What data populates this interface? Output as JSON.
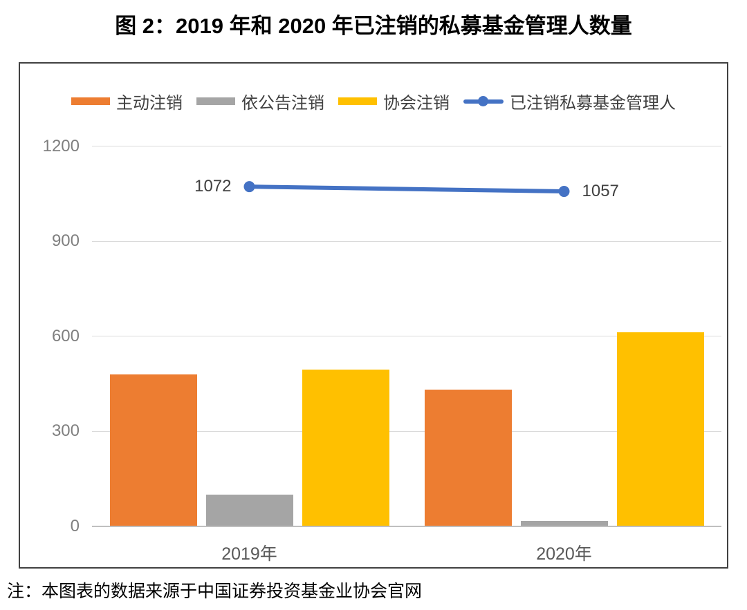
{
  "page": {
    "title": "图 2：2019 年和 2020 年已注销的私募基金管理人数量",
    "note": "注：本图表的数据来源于中国证券投资基金业协会官网"
  },
  "chart_data": {
    "type": "bar",
    "subtype": "grouped-bars-with-line-overlay",
    "title": "图 2：2019 年和 2020 年已注销的私募基金管理人数量",
    "categories": [
      "2019年",
      "2020年"
    ],
    "series": [
      {
        "name": "主动注销",
        "kind": "bar",
        "color": "#ED7D31",
        "values": [
          478,
          430
        ]
      },
      {
        "name": "依公告注销",
        "kind": "bar",
        "color": "#A5A5A5",
        "values": [
          100,
          16
        ]
      },
      {
        "name": "协会注销",
        "kind": "bar",
        "color": "#FFC000",
        "values": [
          494,
          611
        ]
      },
      {
        "name": "已注销私募基金管理人",
        "kind": "line",
        "color": "#4472C4",
        "values": [
          1072,
          1057
        ],
        "data_labels": [
          "1072",
          "1057"
        ]
      }
    ],
    "ylim": [
      0,
      1200
    ],
    "yticks": [
      0,
      300,
      600,
      900,
      1200
    ],
    "grid": true,
    "legend_position": "top"
  },
  "colors": {
    "grid_line": "#D9D9D9",
    "axis_line": "#BFBFBF",
    "tick_label": "#7F7F7F",
    "category_label": "#595959",
    "data_label": "#404040",
    "frame_border": "#404040",
    "background": "#FFFFFF"
  }
}
